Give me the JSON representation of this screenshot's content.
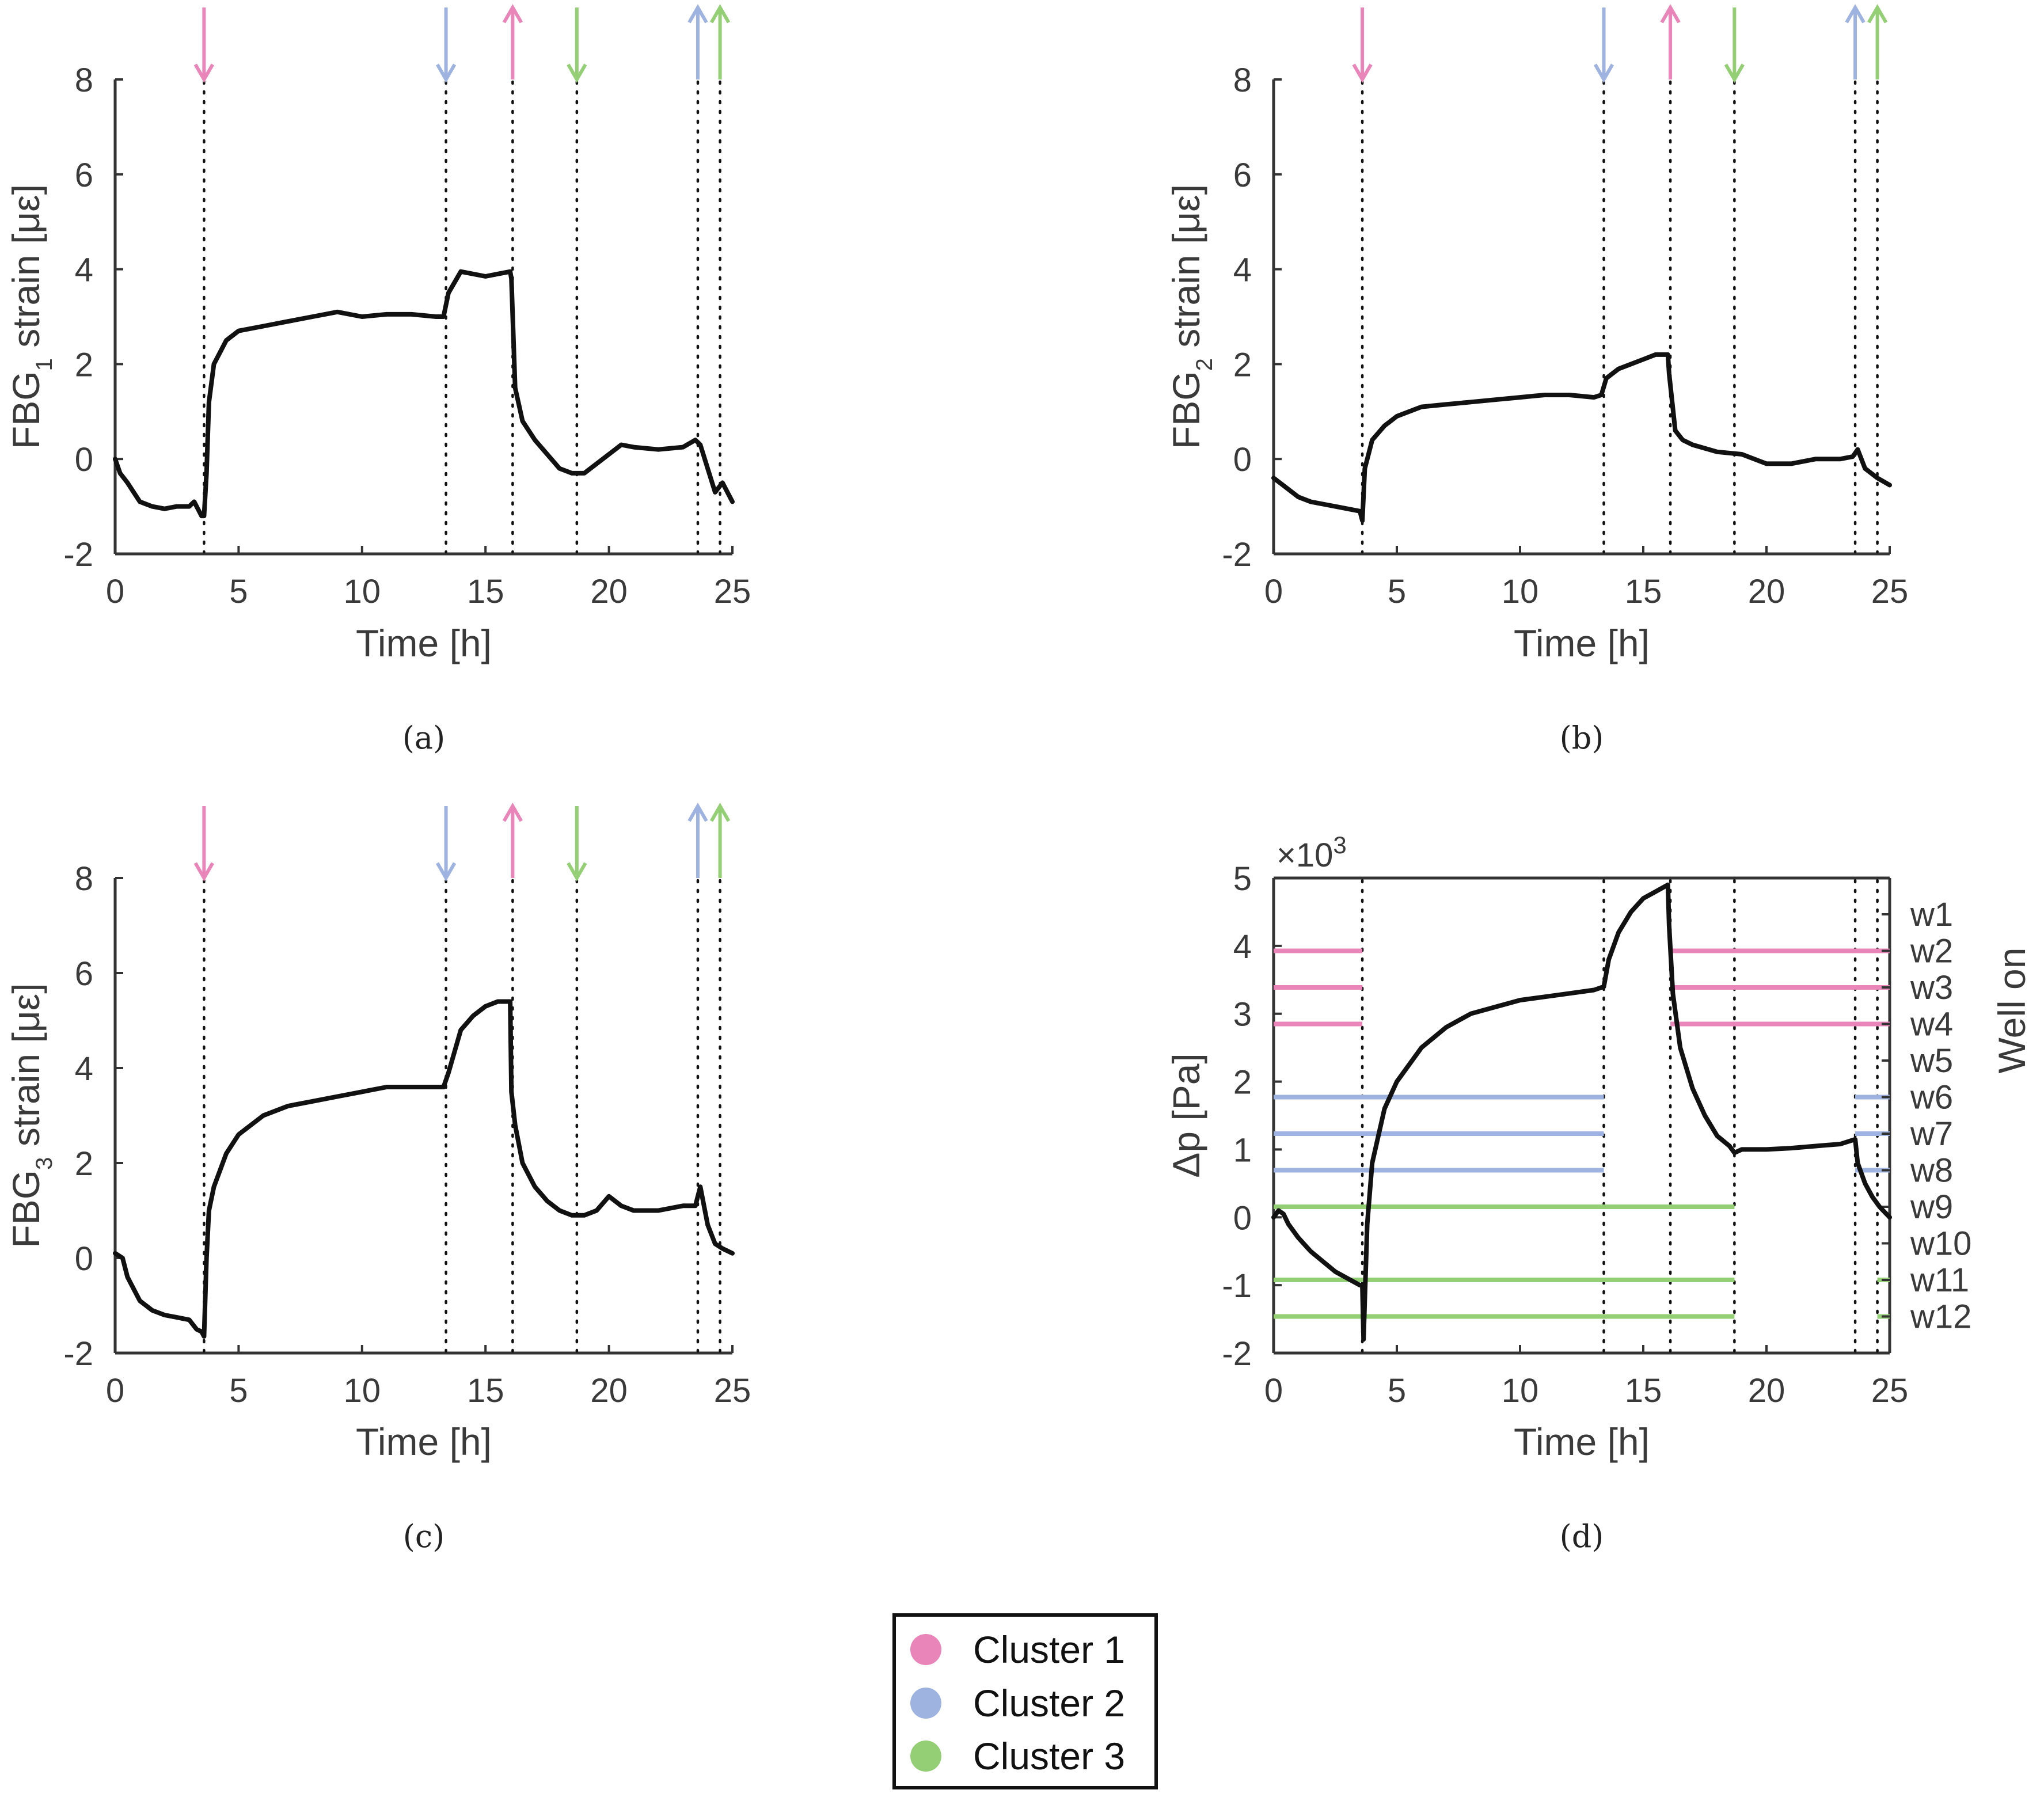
{
  "colors": {
    "cluster1": "#e985b8",
    "cluster2": "#9fb3e0",
    "cluster3": "#94cf76",
    "line": "#111111",
    "axis": "#333333"
  },
  "chart_data": [
    {
      "type": "line",
      "panel_label": "(a)",
      "ylabel_main": "FBG",
      "ylabel_sub": "1",
      "ylabel_rest": " strain [με]",
      "xlabel": "Time [h]",
      "xlim": [
        0,
        25
      ],
      "ylim": [
        -2,
        8
      ],
      "xticks": [
        0,
        5,
        10,
        15,
        20,
        25
      ],
      "yticks": [
        -2,
        0,
        2,
        4,
        6,
        8
      ],
      "xtick_labels": [
        "0",
        "5",
        "10",
        "15",
        "20",
        "25"
      ],
      "ytick_labels": [
        "-2",
        "0",
        "2",
        "4",
        "6",
        "8"
      ],
      "events": [
        {
          "t": 3.6,
          "cluster": 1,
          "dir": "down"
        },
        {
          "t": 13.4,
          "cluster": 2,
          "dir": "down"
        },
        {
          "t": 16.1,
          "cluster": 1,
          "dir": "up"
        },
        {
          "t": 18.7,
          "cluster": 3,
          "dir": "down"
        },
        {
          "t": 23.6,
          "cluster": 2,
          "dir": "up"
        },
        {
          "t": 24.5,
          "cluster": 3,
          "dir": "up"
        }
      ],
      "series": [
        {
          "name": "FBG1 strain",
          "x": [
            0,
            0.2,
            0.5,
            1,
            1.5,
            2,
            2.5,
            3,
            3.2,
            3.5,
            3.6,
            3.7,
            3.8,
            4,
            4.5,
            5,
            6,
            7,
            8,
            9,
            10,
            11,
            12,
            13,
            13.3,
            13.5,
            14,
            15,
            15.5,
            16,
            16.05,
            16.2,
            16.5,
            17,
            17.5,
            18,
            18.5,
            19,
            19.5,
            20,
            20.5,
            21,
            22,
            23,
            23.5,
            23.7,
            24,
            24.3,
            24.6,
            25
          ],
          "y": [
            0,
            -0.3,
            -0.5,
            -0.9,
            -1,
            -1.05,
            -1,
            -1,
            -0.9,
            -1.2,
            -1.2,
            -0.3,
            1.2,
            2,
            2.5,
            2.7,
            2.8,
            2.9,
            3,
            3.1,
            3,
            3.05,
            3.05,
            3,
            3,
            3.5,
            3.95,
            3.85,
            3.9,
            3.95,
            3.8,
            1.5,
            0.8,
            0.4,
            0.1,
            -0.2,
            -0.3,
            -0.3,
            -0.1,
            0.1,
            0.3,
            0.25,
            0.2,
            0.25,
            0.4,
            0.3,
            -0.2,
            -0.7,
            -0.5,
            -0.9
          ]
        }
      ]
    },
    {
      "type": "line",
      "panel_label": "(b)",
      "ylabel_main": "FBG",
      "ylabel_sub": "2",
      "ylabel_rest": " strain [με]",
      "xlabel": "Time [h]",
      "xlim": [
        0,
        25
      ],
      "ylim": [
        -2,
        8
      ],
      "xticks": [
        0,
        5,
        10,
        15,
        20,
        25
      ],
      "yticks": [
        -2,
        0,
        2,
        4,
        6,
        8
      ],
      "xtick_labels": [
        "0",
        "5",
        "10",
        "15",
        "20",
        "25"
      ],
      "ytick_labels": [
        "-2",
        "0",
        "2",
        "4",
        "6",
        "8"
      ],
      "events": [
        {
          "t": 3.6,
          "cluster": 1,
          "dir": "down"
        },
        {
          "t": 13.4,
          "cluster": 2,
          "dir": "down"
        },
        {
          "t": 16.1,
          "cluster": 1,
          "dir": "up"
        },
        {
          "t": 18.7,
          "cluster": 3,
          "dir": "down"
        },
        {
          "t": 23.6,
          "cluster": 2,
          "dir": "up"
        },
        {
          "t": 24.5,
          "cluster": 3,
          "dir": "up"
        }
      ],
      "series": [
        {
          "name": "FBG2 strain",
          "x": [
            0,
            0.5,
            1,
            1.5,
            2,
            2.5,
            3,
            3.5,
            3.6,
            3.7,
            4,
            4.5,
            5,
            6,
            7,
            8,
            9,
            10,
            11,
            12,
            13,
            13.3,
            13.5,
            14,
            15,
            15.5,
            16,
            16.05,
            16.3,
            16.6,
            17,
            18,
            19,
            20,
            21,
            22,
            23,
            23.5,
            23.7,
            24,
            24.5,
            25
          ],
          "y": [
            -0.4,
            -0.6,
            -0.8,
            -0.9,
            -0.95,
            -1,
            -1.05,
            -1.1,
            -1.3,
            -0.2,
            0.4,
            0.7,
            0.9,
            1.1,
            1.15,
            1.2,
            1.25,
            1.3,
            1.35,
            1.35,
            1.3,
            1.35,
            1.7,
            1.9,
            2.1,
            2.2,
            2.2,
            1.8,
            0.6,
            0.4,
            0.3,
            0.15,
            0.1,
            -0.1,
            -0.1,
            0,
            0,
            0.05,
            0.2,
            -0.2,
            -0.4,
            -0.55
          ]
        }
      ]
    },
    {
      "type": "line",
      "panel_label": "(c)",
      "ylabel_main": "FBG",
      "ylabel_sub": "3",
      "ylabel_rest": " strain [με]",
      "xlabel": "Time [h]",
      "xlim": [
        0,
        25
      ],
      "ylim": [
        -2,
        8
      ],
      "xticks": [
        0,
        5,
        10,
        15,
        20,
        25
      ],
      "yticks": [
        -2,
        0,
        2,
        4,
        6,
        8
      ],
      "xtick_labels": [
        "0",
        "5",
        "10",
        "15",
        "20",
        "25"
      ],
      "ytick_labels": [
        "-2",
        "0",
        "2",
        "4",
        "6",
        "8"
      ],
      "events": [
        {
          "t": 3.6,
          "cluster": 1,
          "dir": "down"
        },
        {
          "t": 13.4,
          "cluster": 2,
          "dir": "down"
        },
        {
          "t": 16.1,
          "cluster": 1,
          "dir": "up"
        },
        {
          "t": 18.7,
          "cluster": 3,
          "dir": "down"
        },
        {
          "t": 23.6,
          "cluster": 2,
          "dir": "up"
        },
        {
          "t": 24.5,
          "cluster": 3,
          "dir": "up"
        }
      ],
      "series": [
        {
          "name": "FBG3 strain",
          "x": [
            0,
            0.3,
            0.5,
            1,
            1.5,
            2,
            2.5,
            3,
            3.3,
            3.5,
            3.6,
            3.7,
            3.8,
            4,
            4.5,
            5,
            6,
            7,
            8,
            9,
            10,
            11,
            12,
            13,
            13.3,
            13.5,
            14,
            14.5,
            15,
            15.5,
            16,
            16.05,
            16.2,
            16.5,
            17,
            17.5,
            18,
            18.5,
            19,
            19.5,
            20,
            20.5,
            21,
            22,
            23,
            23.5,
            23.7,
            24,
            24.3,
            24.6,
            25
          ],
          "y": [
            0.1,
            0,
            -0.4,
            -0.9,
            -1.1,
            -1.2,
            -1.25,
            -1.3,
            -1.5,
            -1.55,
            -1.65,
            0,
            1,
            1.5,
            2.2,
            2.6,
            3,
            3.2,
            3.3,
            3.4,
            3.5,
            3.6,
            3.6,
            3.6,
            3.6,
            3.9,
            4.8,
            5.1,
            5.3,
            5.4,
            5.4,
            3.5,
            2.8,
            2,
            1.5,
            1.2,
            1,
            0.9,
            0.9,
            1,
            1.3,
            1.1,
            1,
            1,
            1.1,
            1.1,
            1.5,
            0.7,
            0.3,
            0.2,
            0.1
          ]
        }
      ]
    },
    {
      "type": "line",
      "panel_label": "(d)",
      "ylabel_main": "Δp [Pa]",
      "ylabel_right": "Well on",
      "exponent_label": "×10",
      "exponent_power": "3",
      "xlabel": "Time [h]",
      "xlim": [
        0,
        25
      ],
      "ylim": [
        -2,
        5
      ],
      "xticks": [
        0,
        5,
        10,
        15,
        20,
        25
      ],
      "yticks": [
        -2,
        -1,
        0,
        1,
        2,
        3,
        4,
        5
      ],
      "xtick_labels": [
        "0",
        "5",
        "10",
        "15",
        "20",
        "25"
      ],
      "ytick_labels": [
        "-2",
        "-1",
        "0",
        "1",
        "2",
        "3",
        "4",
        "5"
      ],
      "vlines": [
        3.6,
        13.4,
        16.1,
        18.7,
        23.6,
        24.5
      ],
      "wells": [
        {
          "name": "w1",
          "cluster": 0,
          "on": []
        },
        {
          "name": "w2",
          "cluster": 1,
          "on": [
            [
              0,
              3.6
            ],
            [
              16.1,
              25
            ]
          ]
        },
        {
          "name": "w3",
          "cluster": 1,
          "on": [
            [
              0,
              3.6
            ],
            [
              16.1,
              25
            ]
          ]
        },
        {
          "name": "w4",
          "cluster": 1,
          "on": [
            [
              0,
              3.6
            ],
            [
              16.1,
              25
            ]
          ]
        },
        {
          "name": "w5",
          "cluster": 0,
          "on": []
        },
        {
          "name": "w6",
          "cluster": 2,
          "on": [
            [
              0,
              13.4
            ],
            [
              23.6,
              25
            ]
          ]
        },
        {
          "name": "w7",
          "cluster": 2,
          "on": [
            [
              0,
              13.4
            ],
            [
              23.6,
              25
            ]
          ]
        },
        {
          "name": "w8",
          "cluster": 2,
          "on": [
            [
              0,
              13.4
            ],
            [
              23.6,
              25
            ]
          ]
        },
        {
          "name": "w9",
          "cluster": 3,
          "on": [
            [
              0,
              18.7
            ]
          ]
        },
        {
          "name": "w10",
          "cluster": 0,
          "on": []
        },
        {
          "name": "w11",
          "cluster": 3,
          "on": [
            [
              0,
              18.7
            ],
            [
              24.5,
              25
            ]
          ]
        },
        {
          "name": "w12",
          "cluster": 3,
          "on": [
            [
              0,
              18.7
            ],
            [
              24.5,
              25
            ]
          ]
        }
      ],
      "series": [
        {
          "name": "Δp (×10³ Pa)",
          "x": [
            0,
            0.2,
            0.4,
            0.6,
            1,
            1.5,
            2,
            2.5,
            3,
            3.5,
            3.6,
            3.65,
            3.7,
            3.8,
            4,
            4.5,
            5,
            6,
            7,
            8,
            9,
            10,
            11,
            12,
            13,
            13.4,
            13.6,
            14,
            14.5,
            15,
            15.5,
            16,
            16.05,
            16.2,
            16.5,
            17,
            17.5,
            18,
            18.5,
            18.7,
            19,
            20,
            21,
            22,
            23,
            23.6,
            23.7,
            24,
            24.3,
            24.6,
            25
          ],
          "y": [
            0,
            0.1,
            0.05,
            -0.1,
            -0.3,
            -0.5,
            -0.65,
            -0.8,
            -0.9,
            -1,
            -1,
            -1.8,
            -1.2,
            -0.1,
            0.8,
            1.6,
            2,
            2.5,
            2.8,
            3,
            3.1,
            3.2,
            3.25,
            3.3,
            3.35,
            3.4,
            3.8,
            4.2,
            4.5,
            4.7,
            4.8,
            4.9,
            4.3,
            3.3,
            2.5,
            1.9,
            1.5,
            1.2,
            1.05,
            0.95,
            1,
            1,
            1.02,
            1.05,
            1.08,
            1.15,
            0.8,
            0.5,
            0.3,
            0.15,
            0
          ]
        }
      ]
    }
  ],
  "legend": {
    "items": [
      {
        "label": "Cluster 1",
        "cluster": 1
      },
      {
        "label": "Cluster 2",
        "cluster": 2
      },
      {
        "label": "Cluster 3",
        "cluster": 3
      }
    ]
  }
}
